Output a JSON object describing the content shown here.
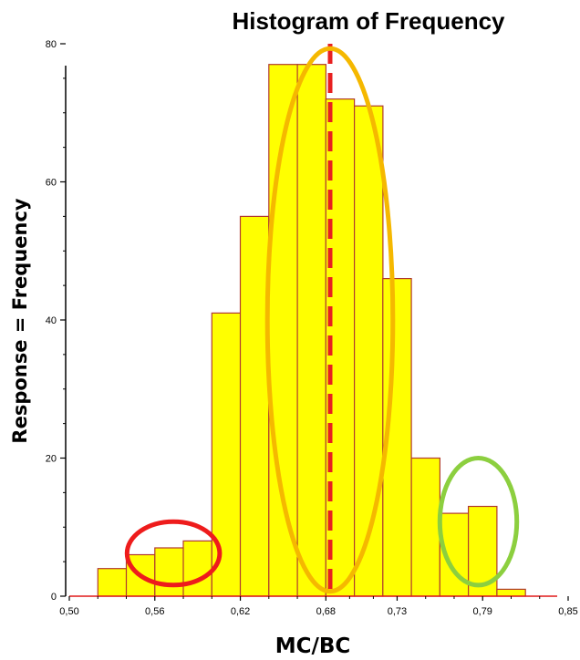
{
  "chart_data": {
    "type": "bar",
    "title": "Histogram of Frequency",
    "xlabel": "MC/BC",
    "ylabel": "Response = Frequency",
    "xlim": [
      0.5,
      0.85
    ],
    "ylim": [
      0,
      80
    ],
    "x_tick_values": [
      0.5,
      0.56,
      0.62,
      0.68,
      0.73,
      0.79,
      0.85
    ],
    "x_tick_labels": [
      "0,50",
      "0,56",
      "0,62",
      "0,68",
      "0,73",
      "0,79",
      "0,85"
    ],
    "y_ticks": [
      0,
      20,
      40,
      60,
      80
    ],
    "bins": [
      {
        "start": 0.52,
        "end": 0.54,
        "value": 4
      },
      {
        "start": 0.54,
        "end": 0.56,
        "value": 6
      },
      {
        "start": 0.56,
        "end": 0.58,
        "value": 7
      },
      {
        "start": 0.58,
        "end": 0.6,
        "value": 8
      },
      {
        "start": 0.6,
        "end": 0.62,
        "value": 41
      },
      {
        "start": 0.62,
        "end": 0.64,
        "value": 55
      },
      {
        "start": 0.64,
        "end": 0.66,
        "value": 77
      },
      {
        "start": 0.66,
        "end": 0.68,
        "value": 77
      },
      {
        "start": 0.68,
        "end": 0.7,
        "value": 72
      },
      {
        "start": 0.7,
        "end": 0.72,
        "value": 71
      },
      {
        "start": 0.72,
        "end": 0.74,
        "value": 46
      },
      {
        "start": 0.74,
        "end": 0.76,
        "value": 20
      },
      {
        "start": 0.76,
        "end": 0.78,
        "value": 12
      },
      {
        "start": 0.78,
        "end": 0.8,
        "value": 13
      },
      {
        "start": 0.8,
        "end": 0.82,
        "value": 1
      }
    ],
    "reference_line": {
      "x": 0.683,
      "style": "dashed",
      "color": "#e82020"
    },
    "annotations": [
      {
        "type": "ellipse",
        "cx": 0.573,
        "cy": 6.2,
        "rx": 0.0325,
        "ry": 4.6,
        "color": "#ee1c1c"
      },
      {
        "type": "ellipse",
        "cx": 0.683,
        "cy": 40.0,
        "rx": 0.044,
        "ry": 39.3,
        "color": "#f5b800"
      },
      {
        "type": "ellipse",
        "cx": 0.787,
        "cy": 10.8,
        "rx": 0.027,
        "ry": 9.2,
        "color": "#8ccf3f"
      }
    ],
    "colors": {
      "bar_fill": "#ffff00",
      "bar_stroke": "#b03a2e",
      "axis": "#000000",
      "baseline": "#e01a1a"
    },
    "grid": false,
    "legend": "none"
  }
}
